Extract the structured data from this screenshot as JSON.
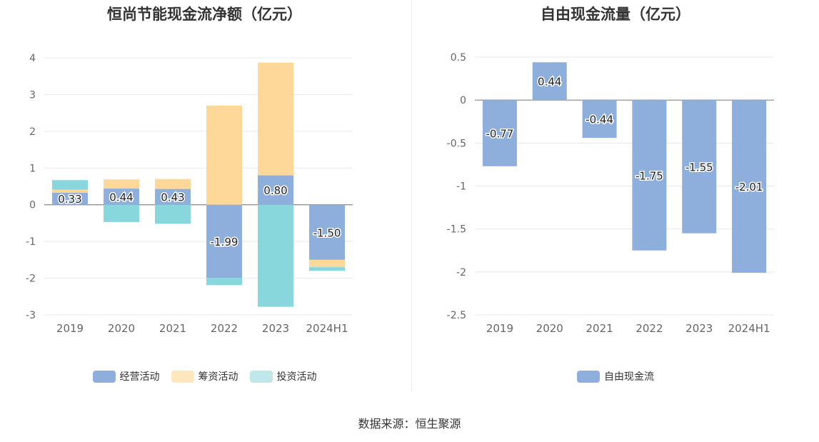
{
  "source_label": "数据来源：恒生聚源",
  "chart_data": [
    {
      "type": "bar",
      "stacked": true,
      "title": "恒尚节能现金流净额（亿元）",
      "categories": [
        "2019",
        "2020",
        "2021",
        "2022",
        "2023",
        "2024H1"
      ],
      "ylim": [
        -3,
        4
      ],
      "yticks": [
        "4",
        "3",
        "2",
        "1",
        "0",
        "-1",
        "-2",
        "-3"
      ],
      "grid": true,
      "legend_position": "bottom",
      "series": [
        {
          "name": "经营活动",
          "color": "#8eaedc",
          "values": [
            0.33,
            0.44,
            0.43,
            -1.99,
            0.8,
            -1.5
          ],
          "labels": [
            "0.33",
            "0.44",
            "0.43",
            "-1.99",
            "0.80",
            "-1.50"
          ]
        },
        {
          "name": "筹资活动",
          "color": "#fed898",
          "values": [
            0.08,
            0.25,
            0.27,
            2.7,
            3.07,
            -0.2
          ]
        },
        {
          "name": "投资活动",
          "color": "#87d7dc",
          "values": [
            0.26,
            -0.47,
            -0.52,
            -0.2,
            -2.78,
            -0.1
          ]
        }
      ]
    },
    {
      "type": "bar",
      "title": "自由现金流量（亿元）",
      "categories": [
        "2019",
        "2020",
        "2021",
        "2022",
        "2023",
        "2024H1"
      ],
      "ylim": [
        -2.5,
        0.5
      ],
      "yticks": [
        "0.5",
        "0",
        "-0.5",
        "-1",
        "-1.5",
        "-2",
        "-2.5"
      ],
      "grid": true,
      "legend_position": "bottom",
      "series": [
        {
          "name": "自由现金流",
          "color": "#8eaedc",
          "values": [
            -0.77,
            0.44,
            -0.44,
            -1.75,
            -1.55,
            -2.01
          ],
          "labels": [
            "-0.77",
            "0.44",
            "-0.44",
            "-1.75",
            "-1.55",
            "-2.01"
          ]
        }
      ]
    }
  ]
}
